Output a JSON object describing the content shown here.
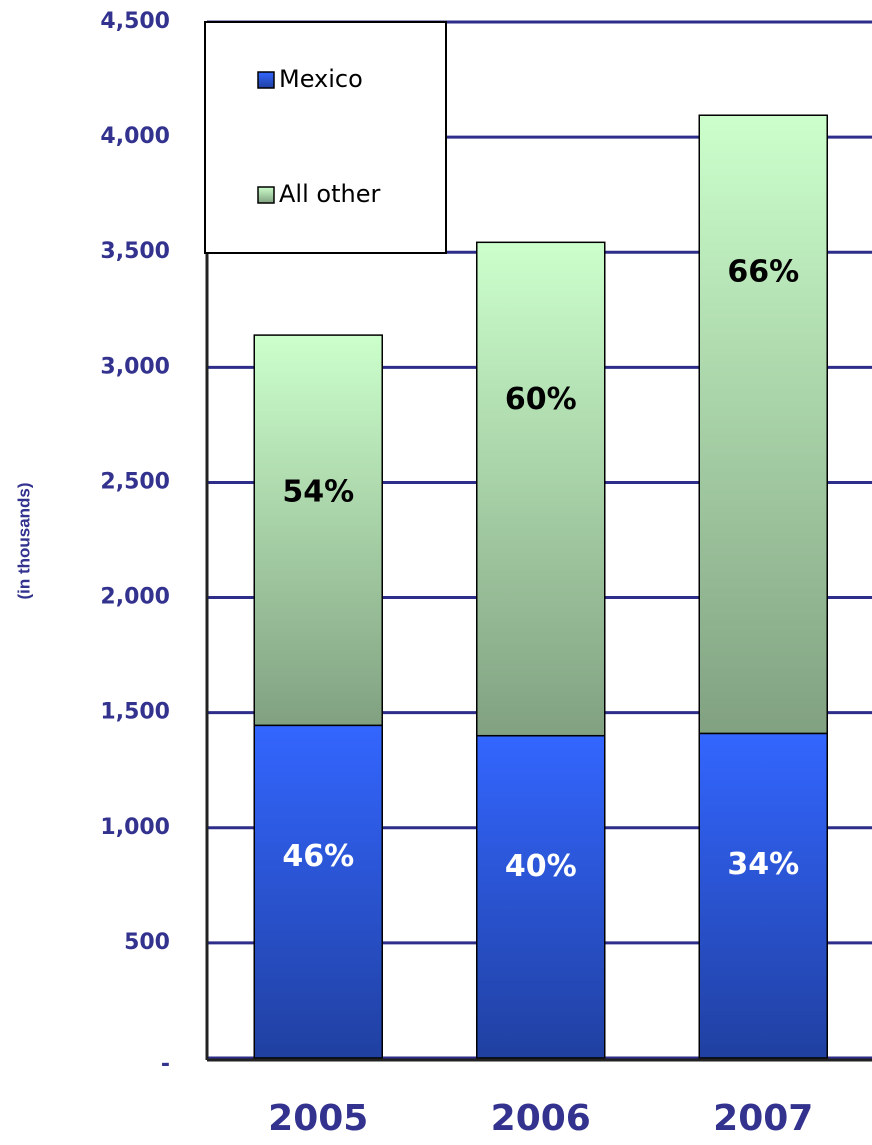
{
  "chart_data": {
    "type": "stacked_bar",
    "y_axis_label": "(in thousands)",
    "categories": [
      "2005",
      "2006",
      "2007"
    ],
    "series": [
      {
        "name": "Mexico",
        "color": "#3366ff",
        "values": [
          1445,
          1400,
          1410
        ],
        "share_labels": [
          "46%",
          "40%",
          "34%"
        ]
      },
      {
        "name": "All other",
        "color": "#ccffcc",
        "values": [
          1695,
          2143,
          2685
        ],
        "share_labels": [
          "54%",
          "60%",
          "66%"
        ]
      }
    ],
    "ylim": [
      0,
      4500
    ],
    "yticks": [
      {
        "value": 0,
        "label": "-"
      },
      500,
      {
        "value": 1000,
        "label": "1,000"
      },
      {
        "value": 1500,
        "label": "1,500"
      },
      {
        "value": 2000,
        "label": "2,000"
      },
      {
        "value": 2500,
        "label": "2,500"
      },
      {
        "value": 3000,
        "label": "3,000"
      },
      {
        "value": 3500,
        "label": "3,500"
      },
      {
        "value": 4000,
        "label": "4,000"
      },
      {
        "value": 4500,
        "label": "4,500"
      }
    ],
    "grid": true,
    "legend": "upper left"
  }
}
